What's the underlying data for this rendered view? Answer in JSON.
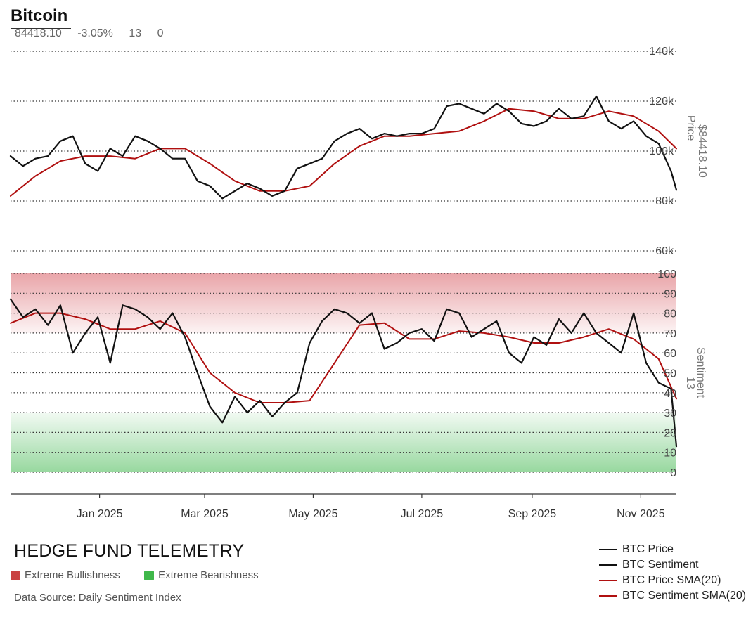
{
  "header": {
    "title": "Bitcoin",
    "last": "84418.10",
    "change": "-3.05%",
    "sentiment": "13",
    "zero": "0"
  },
  "footer": {
    "brand": "HEDGE FUND TELEMETRY",
    "key": [
      {
        "label": "Extreme Bullishness",
        "color": "#c94343"
      },
      {
        "label": "Extreme Bearishness",
        "color": "#3fb84a"
      }
    ],
    "source": "Data Source: Daily Sentiment Index"
  },
  "colors": {
    "price": "#111111",
    "sma": "#b01010",
    "bull_zone": "#e8a0a4",
    "bear_zone": "#92d69a"
  },
  "chart_data": [
    {
      "type": "line",
      "panel": "price",
      "ylabel": "Price",
      "last_label": "$84418.10",
      "ylim": [
        60000,
        140000
      ],
      "y_ticks": [
        60000,
        80000,
        100000,
        120000,
        140000
      ],
      "y_tick_labels": [
        "60k",
        "80k",
        "100k",
        "120k",
        "140k"
      ],
      "x_ticks": [
        "2025-01-01",
        "2025-03-01",
        "2025-05-01",
        "2025-07-01",
        "2025-09-01",
        "2025-11-01"
      ],
      "x_tick_labels": [
        "Jan 2025",
        "Mar 2025",
        "May 2025",
        "Jul 2025",
        "Sep 2025",
        "Nov 2025"
      ],
      "grid": true,
      "series": [
        {
          "name": "BTC Price",
          "x": [
            "2024-11-12",
            "2024-11-19",
            "2024-11-26",
            "2024-12-03",
            "2024-12-10",
            "2024-12-17",
            "2024-12-24",
            "2024-12-31",
            "2025-01-07",
            "2025-01-14",
            "2025-01-21",
            "2025-01-28",
            "2025-02-04",
            "2025-02-11",
            "2025-02-18",
            "2025-02-25",
            "2025-03-04",
            "2025-03-11",
            "2025-03-18",
            "2025-03-25",
            "2025-04-01",
            "2025-04-08",
            "2025-04-15",
            "2025-04-22",
            "2025-04-29",
            "2025-05-06",
            "2025-05-13",
            "2025-05-20",
            "2025-05-27",
            "2025-06-03",
            "2025-06-10",
            "2025-06-17",
            "2025-06-24",
            "2025-07-01",
            "2025-07-08",
            "2025-07-15",
            "2025-07-22",
            "2025-07-29",
            "2025-08-05",
            "2025-08-12",
            "2025-08-19",
            "2025-08-26",
            "2025-09-02",
            "2025-09-09",
            "2025-09-16",
            "2025-09-23",
            "2025-09-30",
            "2025-10-07",
            "2025-10-14",
            "2025-10-21",
            "2025-10-28",
            "2025-11-04",
            "2025-11-11",
            "2025-11-18",
            "2025-11-21"
          ],
          "values": [
            98000,
            94000,
            97000,
            98000,
            104000,
            106000,
            95000,
            92000,
            101000,
            98000,
            106000,
            104000,
            101000,
            97000,
            97000,
            88000,
            86000,
            81000,
            84000,
            87000,
            85000,
            82000,
            84000,
            93000,
            95000,
            97000,
            104000,
            107000,
            109000,
            105000,
            107000,
            106000,
            107000,
            107000,
            109000,
            118000,
            119000,
            117000,
            115000,
            119000,
            116000,
            111000,
            110000,
            112000,
            117000,
            113000,
            114000,
            122000,
            112000,
            109000,
            112000,
            106000,
            103000,
            92000,
            84418
          ]
        },
        {
          "name": "BTC Price SMA(20)",
          "x": [
            "2024-11-12",
            "2024-11-26",
            "2024-12-10",
            "2024-12-24",
            "2025-01-07",
            "2025-01-21",
            "2025-02-04",
            "2025-02-18",
            "2025-03-04",
            "2025-03-18",
            "2025-04-01",
            "2025-04-15",
            "2025-04-29",
            "2025-05-13",
            "2025-05-27",
            "2025-06-10",
            "2025-06-24",
            "2025-07-08",
            "2025-07-22",
            "2025-08-05",
            "2025-08-19",
            "2025-09-02",
            "2025-09-16",
            "2025-09-30",
            "2025-10-14",
            "2025-10-28",
            "2025-11-11",
            "2025-11-21"
          ],
          "values": [
            82000,
            90000,
            96000,
            98000,
            98000,
            97000,
            101000,
            101000,
            95000,
            88000,
            84000,
            84000,
            86000,
            95000,
            102000,
            106000,
            106000,
            107000,
            108000,
            112000,
            117000,
            116000,
            113000,
            113000,
            116000,
            114000,
            108000,
            101000
          ]
        }
      ]
    },
    {
      "type": "line",
      "panel": "sentiment",
      "ylabel": "Sentiment",
      "last_label": "13",
      "ylim": [
        0,
        100
      ],
      "y_ticks": [
        0,
        10,
        20,
        30,
        40,
        50,
        60,
        70,
        80,
        90,
        100
      ],
      "y_tick_labels": [
        "0",
        "10",
        "20",
        "30",
        "40",
        "50",
        "60",
        "70",
        "80",
        "90",
        "100"
      ],
      "bands": [
        {
          "name": "Extreme Bullishness",
          "from": 70,
          "to": 100
        },
        {
          "name": "Extreme Bearishness",
          "from": 0,
          "to": 30
        }
      ],
      "grid": true,
      "series": [
        {
          "name": "BTC Sentiment",
          "x": [
            "2024-11-12",
            "2024-11-19",
            "2024-11-26",
            "2024-12-03",
            "2024-12-10",
            "2024-12-17",
            "2024-12-24",
            "2024-12-31",
            "2025-01-07",
            "2025-01-14",
            "2025-01-21",
            "2025-01-28",
            "2025-02-04",
            "2025-02-11",
            "2025-02-18",
            "2025-02-25",
            "2025-03-04",
            "2025-03-11",
            "2025-03-18",
            "2025-03-25",
            "2025-04-01",
            "2025-04-08",
            "2025-04-15",
            "2025-04-22",
            "2025-04-29",
            "2025-05-06",
            "2025-05-13",
            "2025-05-20",
            "2025-05-27",
            "2025-06-03",
            "2025-06-10",
            "2025-06-17",
            "2025-06-24",
            "2025-07-01",
            "2025-07-08",
            "2025-07-15",
            "2025-07-22",
            "2025-07-29",
            "2025-08-05",
            "2025-08-12",
            "2025-08-19",
            "2025-08-26",
            "2025-09-02",
            "2025-09-09",
            "2025-09-16",
            "2025-09-23",
            "2025-09-30",
            "2025-10-07",
            "2025-10-14",
            "2025-10-21",
            "2025-10-28",
            "2025-11-04",
            "2025-11-11",
            "2025-11-18",
            "2025-11-21"
          ],
          "values": [
            87,
            78,
            82,
            74,
            84,
            60,
            70,
            78,
            55,
            84,
            82,
            78,
            72,
            80,
            68,
            50,
            33,
            25,
            38,
            30,
            36,
            28,
            35,
            40,
            65,
            76,
            82,
            80,
            75,
            80,
            62,
            65,
            70,
            72,
            66,
            82,
            80,
            68,
            72,
            76,
            60,
            55,
            68,
            64,
            77,
            70,
            80,
            70,
            65,
            60,
            80,
            55,
            45,
            42,
            13
          ]
        },
        {
          "name": "BTC Sentiment SMA(20)",
          "x": [
            "2024-11-12",
            "2024-11-26",
            "2024-12-10",
            "2024-12-24",
            "2025-01-07",
            "2025-01-21",
            "2025-02-04",
            "2025-02-18",
            "2025-03-04",
            "2025-03-18",
            "2025-04-01",
            "2025-04-15",
            "2025-04-29",
            "2025-05-13",
            "2025-05-27",
            "2025-06-10",
            "2025-06-24",
            "2025-07-08",
            "2025-07-22",
            "2025-08-05",
            "2025-08-19",
            "2025-09-02",
            "2025-09-16",
            "2025-09-30",
            "2025-10-14",
            "2025-10-28",
            "2025-11-11",
            "2025-11-21"
          ],
          "values": [
            75,
            80,
            80,
            77,
            72,
            72,
            76,
            70,
            50,
            40,
            35,
            35,
            36,
            55,
            74,
            75,
            67,
            67,
            71,
            70,
            68,
            65,
            65,
            68,
            72,
            67,
            57,
            37
          ]
        }
      ]
    }
  ],
  "legend": [
    {
      "label": "BTC Price",
      "series": "price"
    },
    {
      "label": "BTC Sentiment",
      "series": "price"
    },
    {
      "label": "BTC Price SMA(20)",
      "series": "sma"
    },
    {
      "label": "BTC Sentiment SMA(20)",
      "series": "sma"
    }
  ]
}
